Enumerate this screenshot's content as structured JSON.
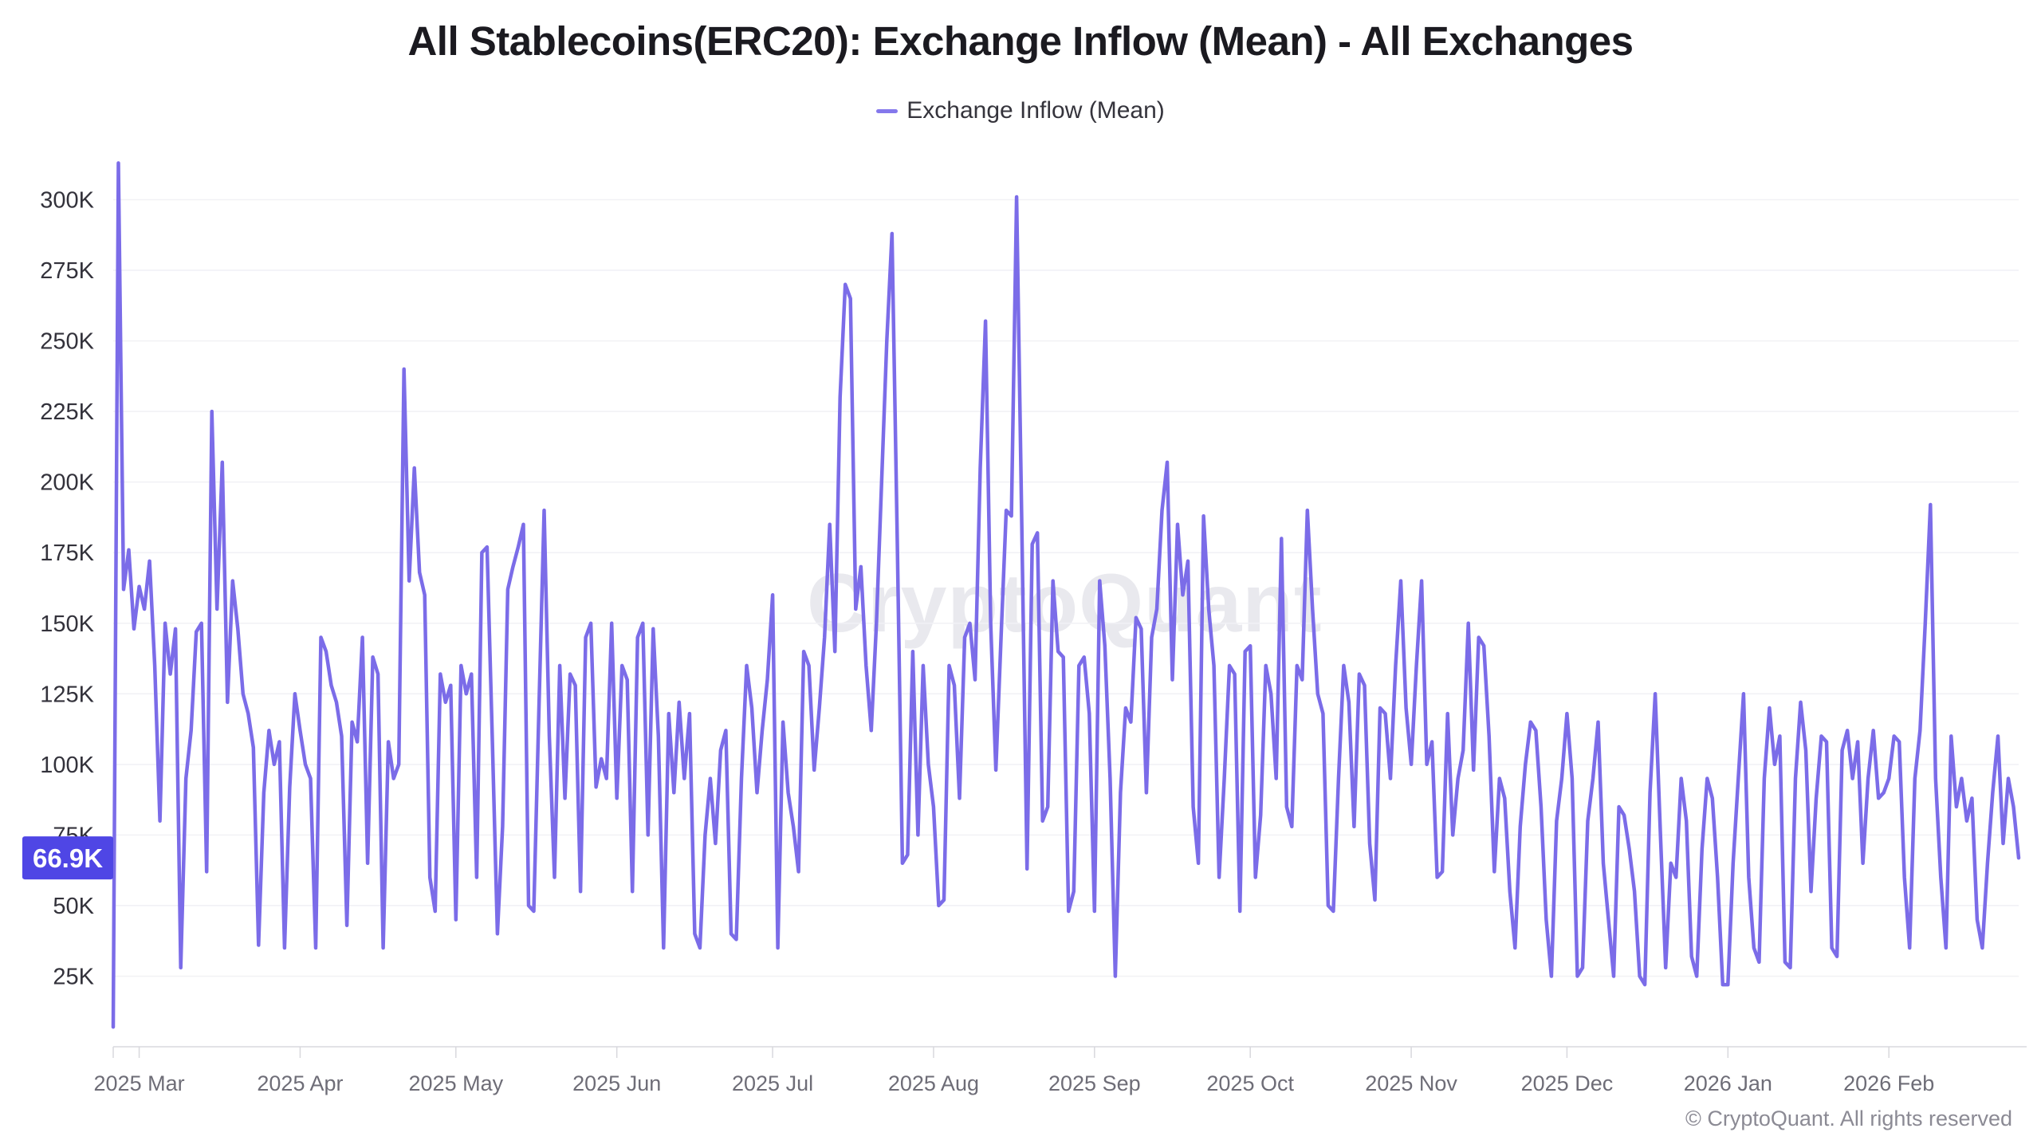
{
  "header": {
    "title": "All Stablecoins(ERC20): Exchange Inflow (Mean) - All Exchanges"
  },
  "legend": {
    "label": "Exchange Inflow (Mean)",
    "marker_color": "#8478ec"
  },
  "watermark": {
    "text": "CryptoQuant"
  },
  "footer": {
    "copyright": "© CryptoQuant. All rights reserved"
  },
  "chart_data": {
    "type": "line",
    "title": "All Stablecoins(ERC20): Exchange Inflow (Mean) - All Exchanges",
    "xlabel": "",
    "ylabel": "",
    "grid": true,
    "legend_position": "top-center",
    "y_axis": {
      "min": 0,
      "max": 336,
      "tick_values": [
        25,
        50,
        75,
        100,
        125,
        150,
        175,
        200,
        225,
        250,
        275,
        300
      ],
      "tick_labels": [
        "25K",
        "50K",
        "75K",
        "100K",
        "125K",
        "150K",
        "175K",
        "200K",
        "225K",
        "250K",
        "275K",
        "300K"
      ]
    },
    "x_axis": {
      "tick_labels": [
        "2025 Mar",
        "2025 Apr",
        "2025 May",
        "2025 Jun",
        "2025 Jul",
        "2025 Aug",
        "2025 Sep",
        "2025 Oct",
        "2025 Nov",
        "2025 Dec",
        "2026 Jan",
        "2026 Feb"
      ],
      "tick_indices": [
        5,
        36,
        66,
        97,
        127,
        158,
        189,
        219,
        250,
        280,
        311,
        342
      ]
    },
    "latest": {
      "label": "66.9K",
      "value": 66.9,
      "badge_color": "#4f46e5"
    },
    "series": [
      {
        "name": "Exchange Inflow (Mean)",
        "color": "#7b6ce8",
        "unit": "K",
        "values": [
          7,
          313,
          162,
          176,
          148,
          163,
          155,
          172,
          135,
          80,
          150,
          132,
          148,
          28,
          95,
          112,
          147,
          150,
          62,
          225,
          155,
          207,
          122,
          165,
          148,
          125,
          118,
          106,
          36,
          90,
          112,
          100,
          108,
          35,
          92,
          125,
          112,
          100,
          95,
          35,
          145,
          140,
          128,
          122,
          110,
          43,
          115,
          108,
          145,
          65,
          138,
          132,
          35,
          108,
          95,
          100,
          240,
          165,
          205,
          168,
          160,
          60,
          48,
          132,
          122,
          128,
          45,
          135,
          125,
          132,
          60,
          175,
          177,
          110,
          40,
          78,
          162,
          170,
          177,
          185,
          50,
          48,
          120,
          190,
          110,
          60,
          135,
          88,
          132,
          128,
          55,
          145,
          150,
          92,
          102,
          95,
          150,
          88,
          135,
          130,
          55,
          145,
          150,
          75,
          148,
          110,
          35,
          118,
          90,
          122,
          95,
          118,
          40,
          35,
          75,
          95,
          72,
          105,
          112,
          40,
          38,
          95,
          135,
          120,
          90,
          112,
          130,
          160,
          35,
          115,
          90,
          78,
          62,
          140,
          135,
          98,
          120,
          145,
          185,
          140,
          230,
          270,
          265,
          155,
          170,
          135,
          112,
          150,
          200,
          250,
          288,
          180,
          65,
          68,
          140,
          75,
          135,
          100,
          85,
          50,
          52,
          135,
          128,
          88,
          145,
          150,
          130,
          205,
          257,
          150,
          98,
          145,
          190,
          188,
          301,
          185,
          63,
          178,
          182,
          80,
          85,
          165,
          140,
          138,
          48,
          55,
          135,
          138,
          118,
          48,
          165,
          142,
          95,
          25,
          90,
          120,
          115,
          152,
          148,
          90,
          145,
          155,
          190,
          207,
          130,
          185,
          160,
          172,
          85,
          65,
          188,
          155,
          135,
          60,
          95,
          135,
          132,
          48,
          140,
          142,
          60,
          82,
          135,
          125,
          95,
          180,
          85,
          78,
          135,
          130,
          190,
          155,
          125,
          118,
          50,
          48,
          95,
          135,
          122,
          78,
          132,
          128,
          72,
          52,
          120,
          118,
          95,
          135,
          165,
          120,
          100,
          135,
          165,
          100,
          108,
          60,
          62,
          118,
          75,
          95,
          105,
          150,
          98,
          145,
          142,
          110,
          62,
          95,
          88,
          55,
          35,
          78,
          100,
          115,
          112,
          85,
          45,
          25,
          80,
          95,
          118,
          95,
          25,
          28,
          80,
          95,
          115,
          65,
          45,
          25,
          85,
          82,
          70,
          55,
          25,
          22,
          90,
          125,
          75,
          28,
          65,
          60,
          95,
          80,
          32,
          25,
          70,
          95,
          88,
          60,
          22,
          22,
          65,
          95,
          125,
          60,
          35,
          30,
          95,
          120,
          100,
          110,
          30,
          28,
          95,
          122,
          105,
          55,
          88,
          110,
          108,
          35,
          32,
          105,
          112,
          95,
          108,
          65,
          95,
          112,
          88,
          90,
          95,
          110,
          108,
          60,
          35,
          95,
          112,
          150,
          192,
          95,
          60,
          35,
          110,
          85,
          95,
          80,
          88,
          45,
          35,
          65,
          90,
          110,
          72,
          95,
          85,
          66.9
        ]
      }
    ]
  }
}
